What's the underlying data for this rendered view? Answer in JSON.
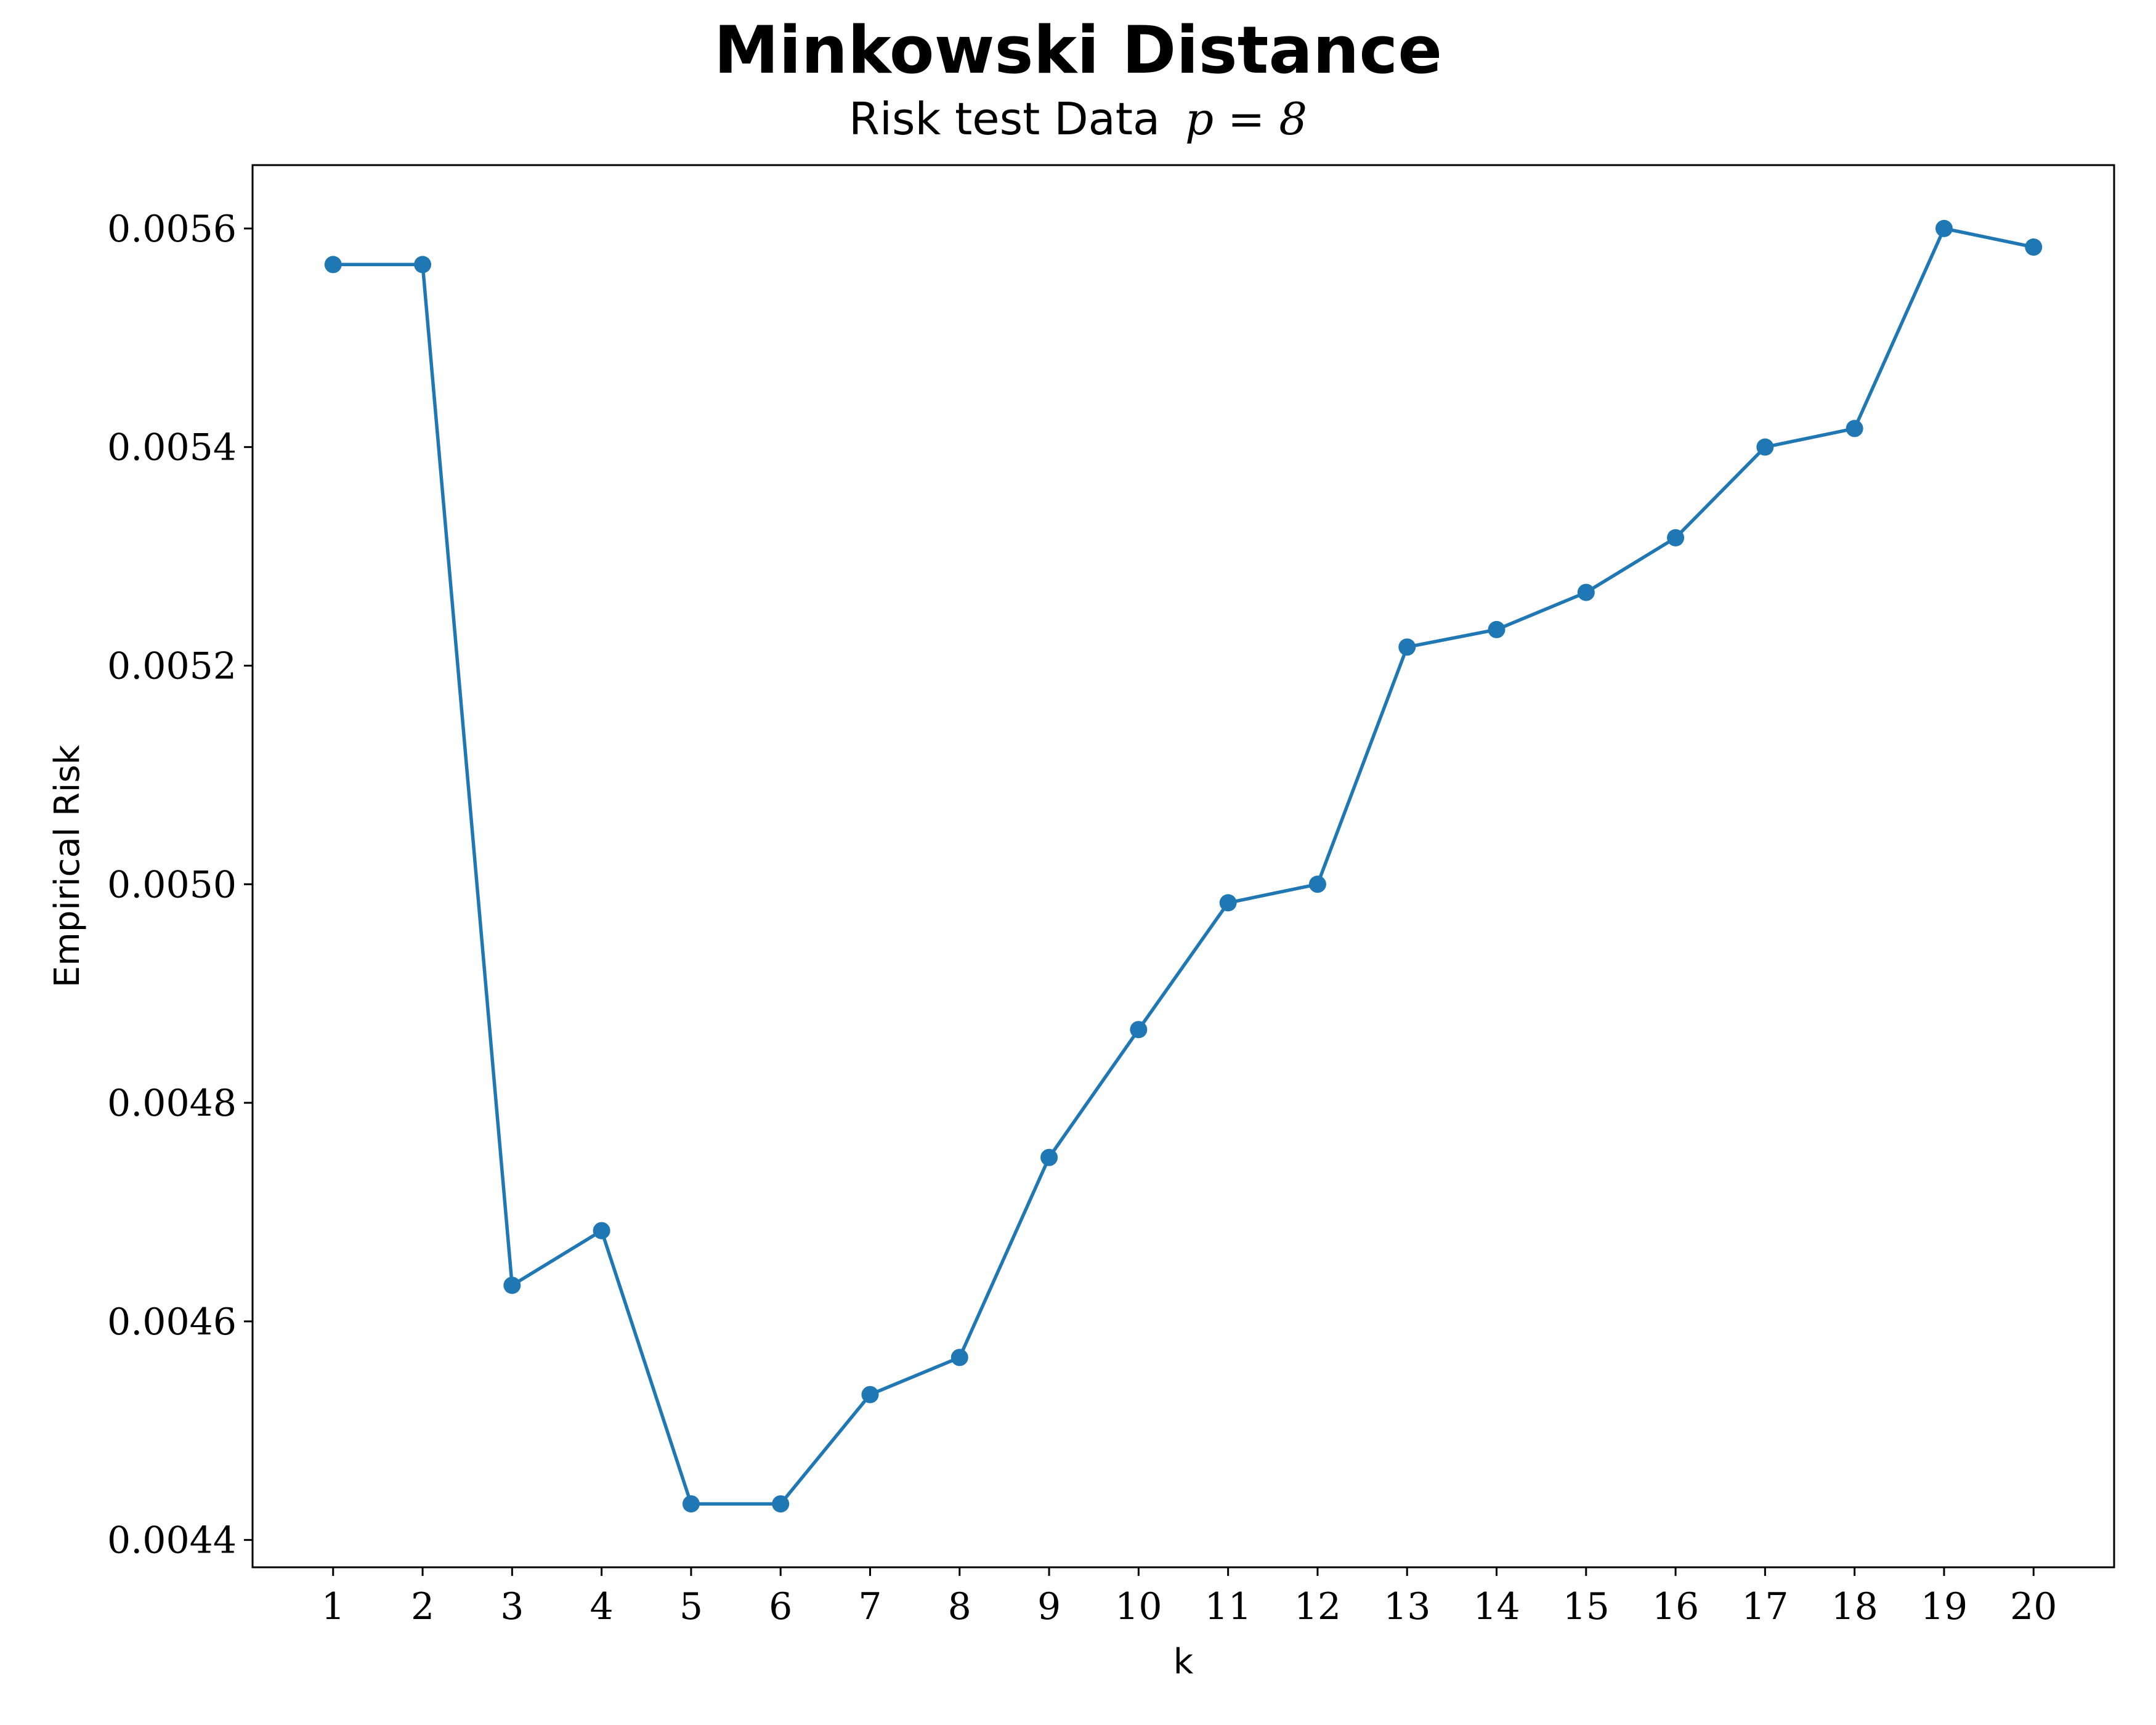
{
  "chart_data": {
    "type": "line",
    "title": "Minkowski Distance",
    "subtitle_text": "Risk test Data",
    "subtitle_math": "p = 8",
    "xlabel": "k",
    "ylabel": "Empirical Risk",
    "x": [
      1,
      2,
      3,
      4,
      5,
      6,
      7,
      8,
      9,
      10,
      11,
      12,
      13,
      14,
      15,
      16,
      17,
      18,
      19,
      20
    ],
    "series": [
      {
        "values": [
          0.005567,
          0.005567,
          0.004633,
          0.004683,
          0.004433,
          0.004433,
          0.004533,
          0.004567,
          0.00475,
          0.004867,
          0.004983,
          0.005,
          0.005217,
          0.005233,
          0.005267,
          0.005317,
          0.0054,
          0.005417,
          0.0056,
          0.005583
        ],
        "color": "#1f77b4",
        "marker": "circle"
      }
    ],
    "xticks": [
      "1",
      "2",
      "3",
      "4",
      "5",
      "6",
      "7",
      "8",
      "9",
      "10",
      "11",
      "12",
      "13",
      "14",
      "15",
      "16",
      "17",
      "18",
      "19",
      "20"
    ],
    "yticks": [
      0.0044,
      0.0046,
      0.0048,
      0.005,
      0.0052,
      0.0054,
      0.0056
    ],
    "ytick_labels": [
      "0.0044",
      "0.0046",
      "0.0048",
      "0.0050",
      "0.0052",
      "0.0054",
      "0.0056"
    ],
    "xlim": [
      0.1,
      20.9
    ],
    "ylim": [
      0.004375,
      0.005658
    ],
    "grid": false,
    "legend": "none"
  }
}
